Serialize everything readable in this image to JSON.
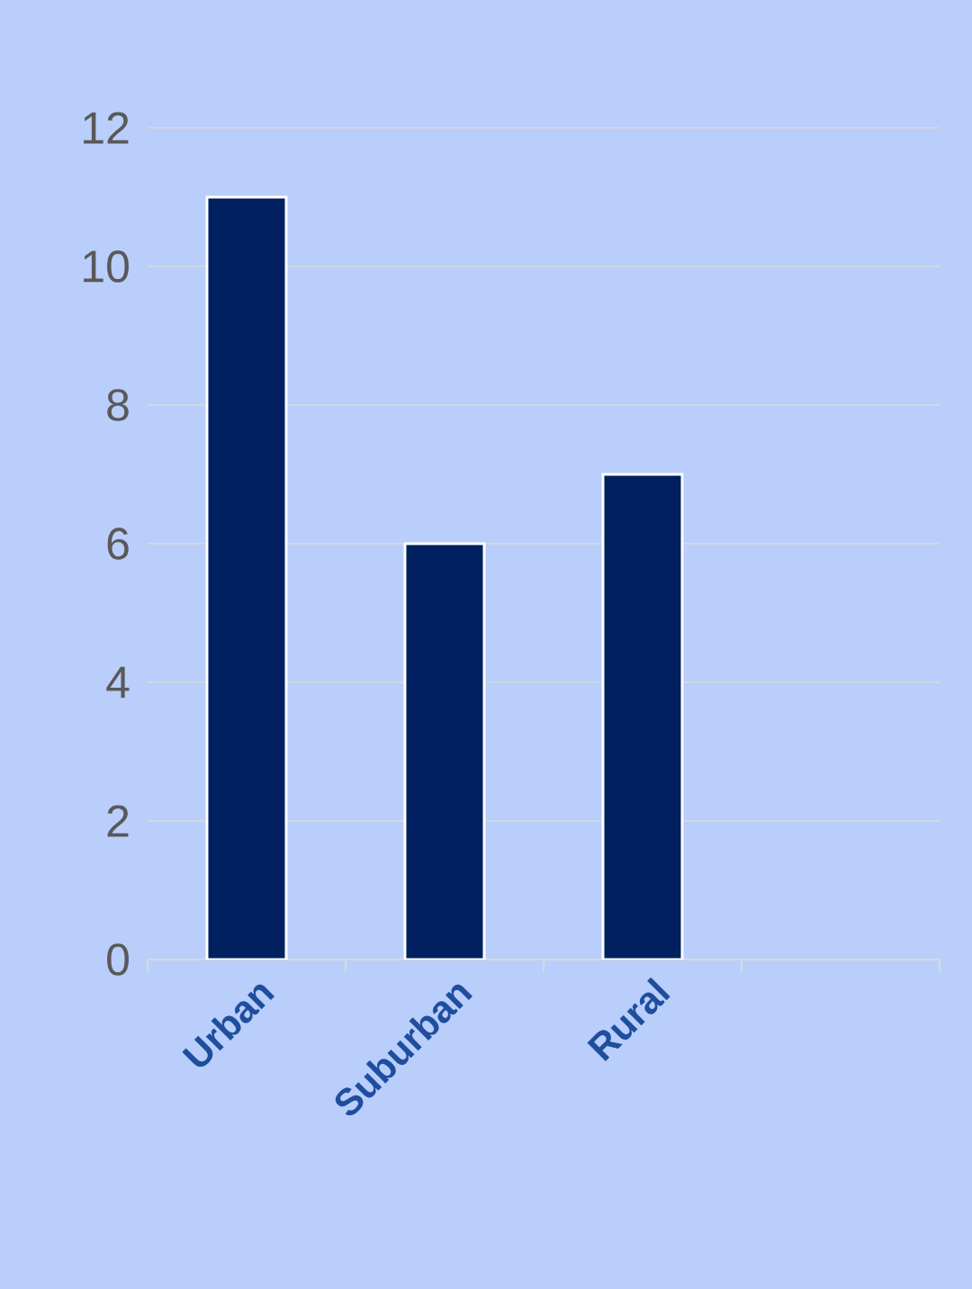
{
  "chart_data": {
    "type": "bar",
    "categories": [
      "Urban",
      "Suburban",
      "Rural",
      null
    ],
    "values": [
      11,
      6,
      7,
      null
    ],
    "color": "#002060",
    "ylim": [
      0,
      12
    ],
    "yticks": [
      0,
      2,
      4,
      6,
      8,
      10,
      12
    ],
    "grid": "y"
  }
}
